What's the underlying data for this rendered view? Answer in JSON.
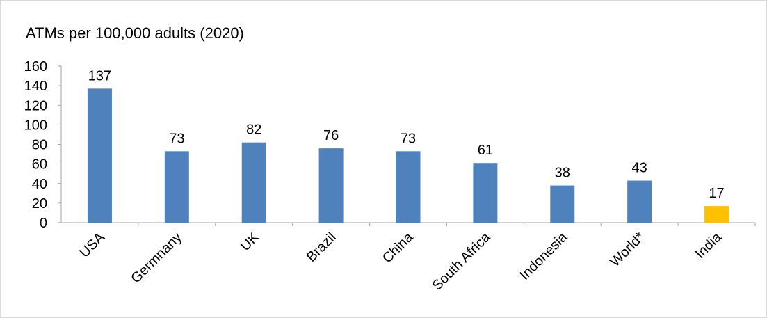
{
  "chart_data": {
    "type": "bar",
    "title": "ATMs per 100,000 adults (2020)",
    "categories": [
      "USA",
      "Germnany",
      "UK",
      "Brazil",
      "China",
      "South Africa",
      "Indonesia",
      "World*",
      "India"
    ],
    "values": [
      137,
      73,
      82,
      76,
      73,
      61,
      38,
      43,
      17
    ],
    "data_labels": [
      "137",
      "73",
      "82",
      "76",
      "73",
      "61",
      "38",
      "43",
      "17"
    ],
    "y_ticks": [
      "0",
      "20",
      "40",
      "60",
      "80",
      "100",
      "120",
      "140",
      "160"
    ],
    "ylim": [
      0,
      160
    ],
    "xlabel": "",
    "ylabel": "",
    "grid": false,
    "legend": "none",
    "colors": {
      "default_bar": "#4f81bd",
      "highlight_bar": "#ffc000",
      "highlight_category": "India"
    }
  }
}
